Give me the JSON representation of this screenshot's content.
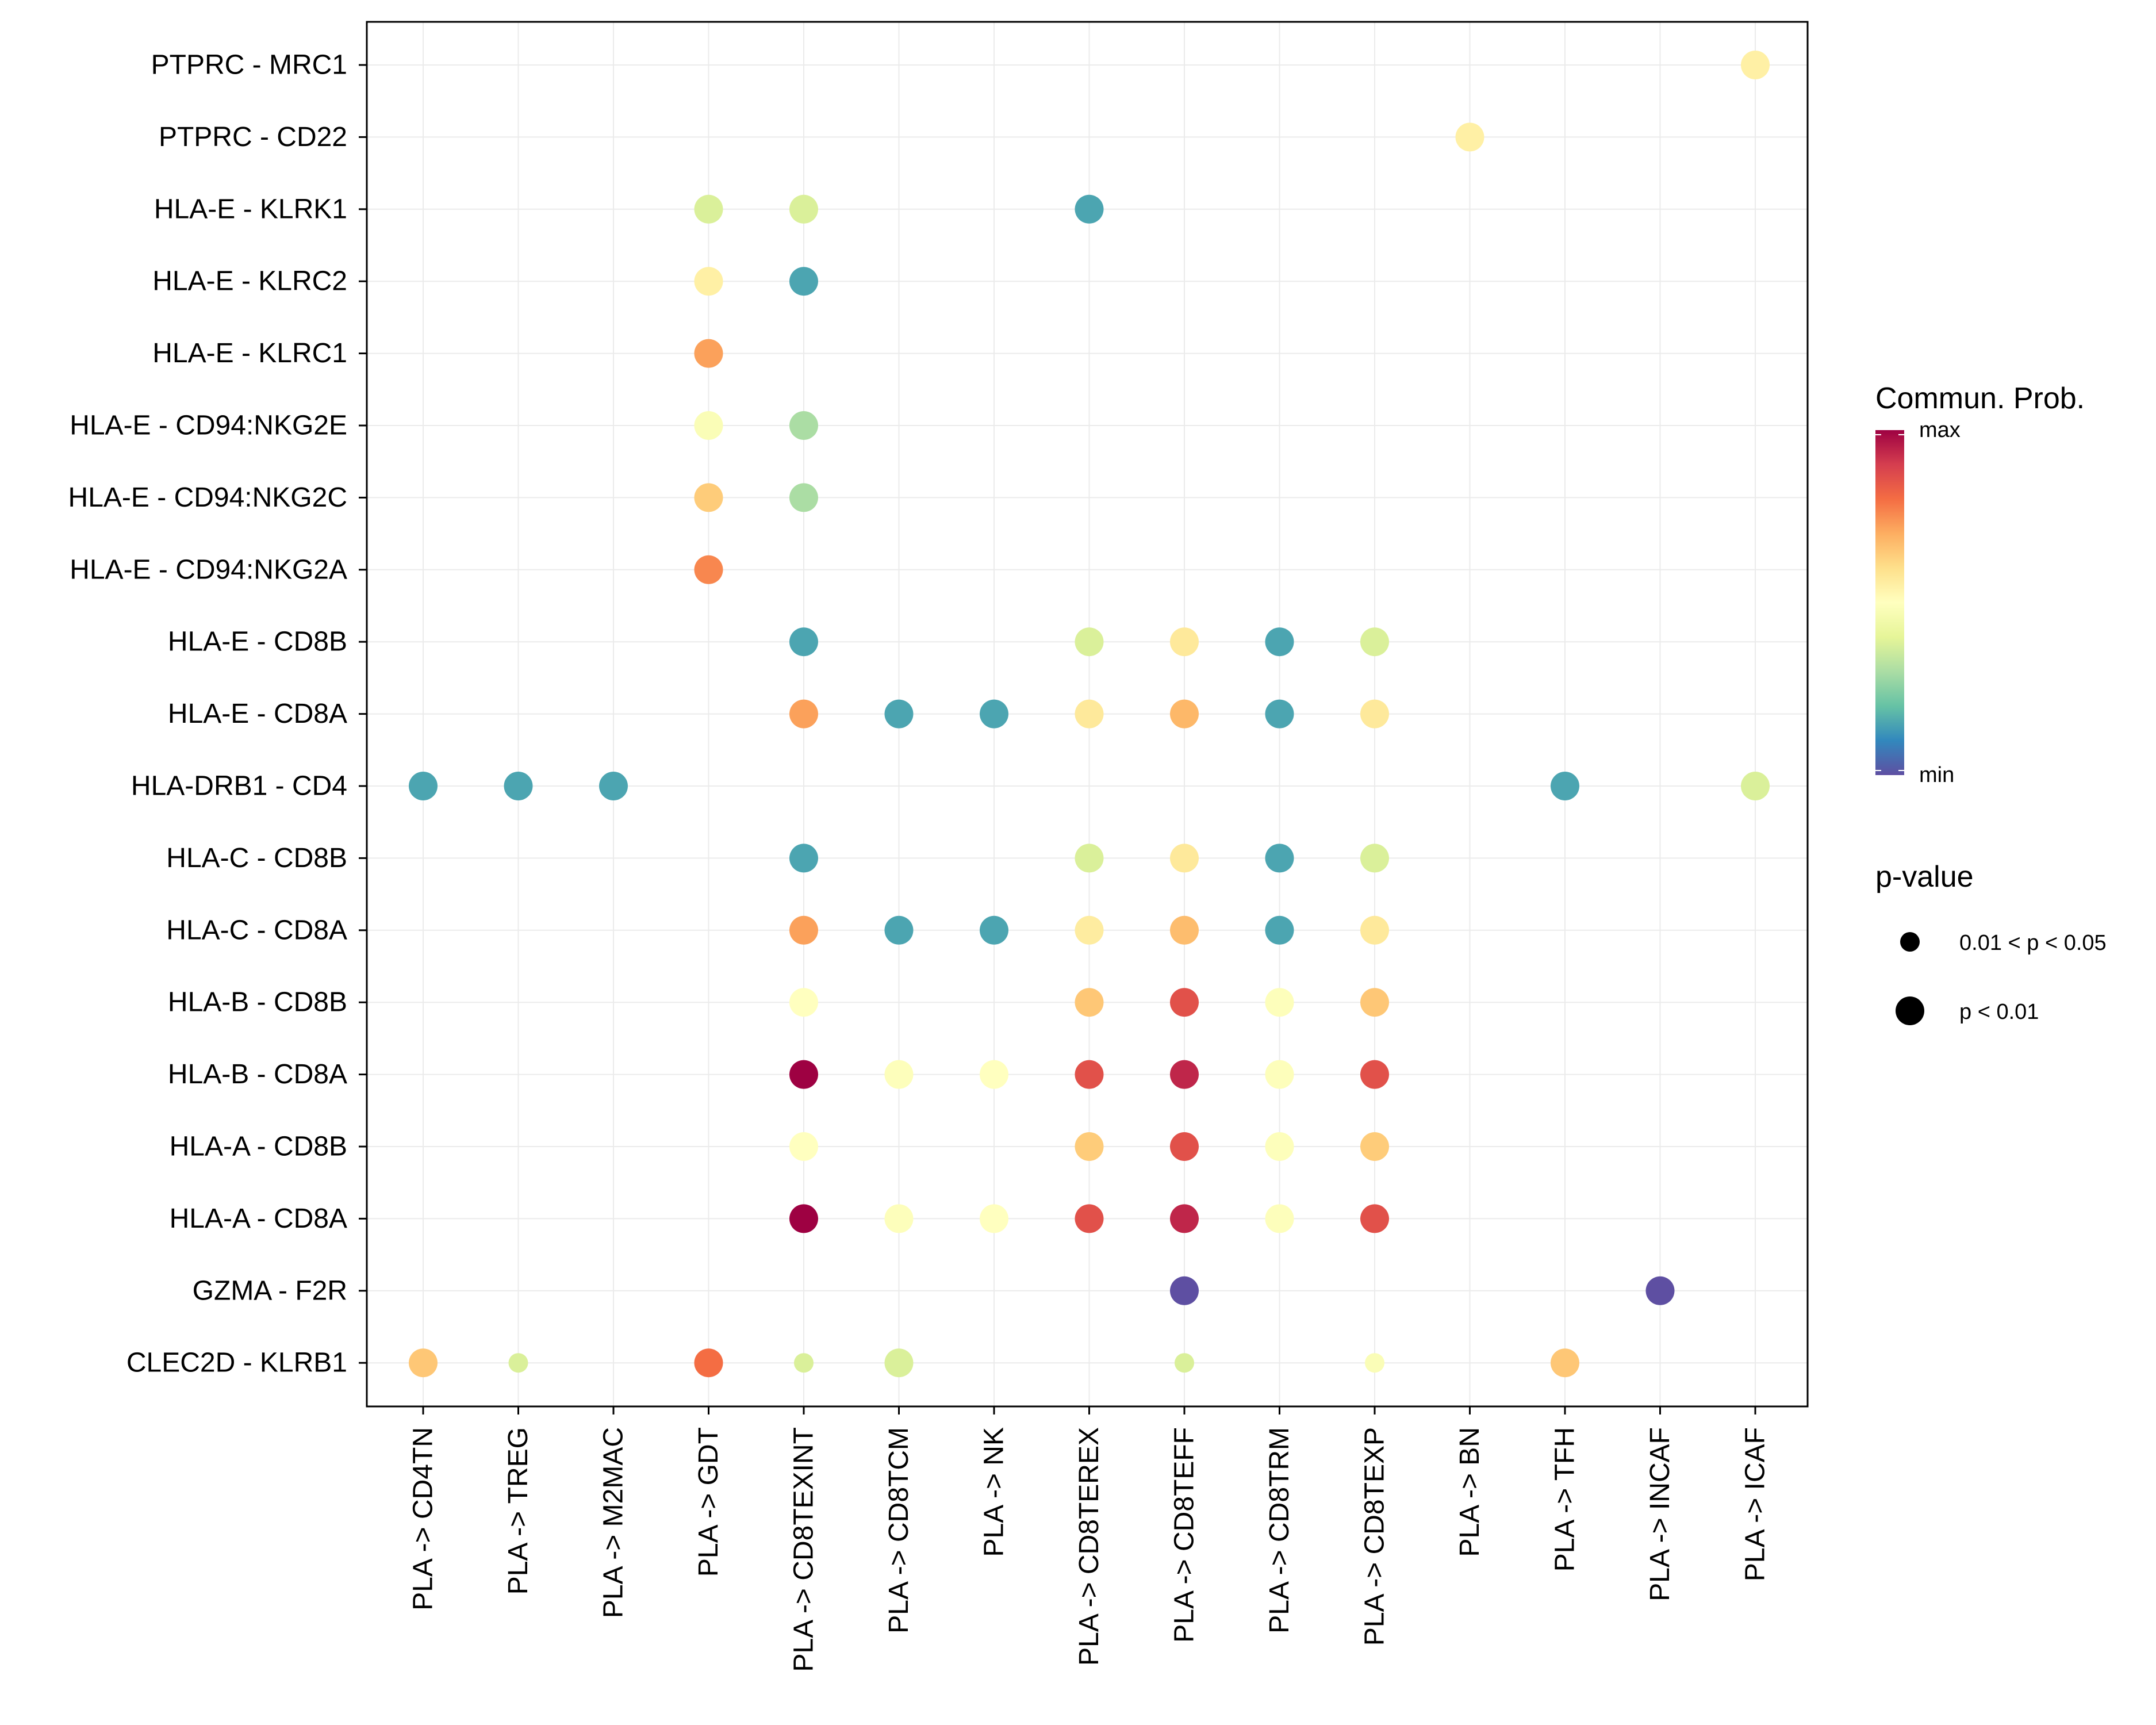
{
  "chart_data": {
    "type": "scatter",
    "subtype": "dot-plot",
    "x_categories": [
      "PLA -> CD4TN",
      "PLA -> TREG",
      "PLA -> M2MAC",
      "PLA -> GDT",
      "PLA -> CD8TEXINT",
      "PLA -> CD8TCM",
      "PLA -> NK",
      "PLA -> CD8TEREX",
      "PLA -> CD8TEFF",
      "PLA -> CD8TRM",
      "PLA -> CD8TEXP",
      "PLA -> BN",
      "PLA -> TFH",
      "PLA -> INCAF",
      "PLA -> ICAF"
    ],
    "y_categories": [
      "PTPRC - MRC1",
      "PTPRC - CD22",
      "HLA-E - KLRK1",
      "HLA-E - KLRC2",
      "HLA-E - KLRC1",
      "HLA-E - CD94:NKG2E",
      "HLA-E - CD94:NKG2C",
      "HLA-E - CD94:NKG2A",
      "HLA-E - CD8B",
      "HLA-E - CD8A",
      "HLA-DRB1 - CD4",
      "HLA-C - CD8B",
      "HLA-C - CD8A",
      "HLA-B - CD8B",
      "HLA-B - CD8A",
      "HLA-A - CD8B",
      "HLA-A - CD8A",
      "GZMA - F2R",
      "CLEC2D - KLRB1"
    ],
    "points": [
      {
        "x": "PLA -> ICAF",
        "y": "PTPRC - MRC1",
        "prob": 0.55,
        "pval": "p < 0.01"
      },
      {
        "x": "PLA -> BN",
        "y": "PTPRC - CD22",
        "prob": 0.55,
        "pval": "p < 0.01"
      },
      {
        "x": "PLA -> GDT",
        "y": "HLA-E - KLRK1",
        "prob": 0.38,
        "pval": "p < 0.01"
      },
      {
        "x": "PLA -> CD8TEXINT",
        "y": "HLA-E - KLRK1",
        "prob": 0.38,
        "pval": "p < 0.01"
      },
      {
        "x": "PLA -> CD8TEREX",
        "y": "HLA-E - KLRK1",
        "prob": 0.15,
        "pval": "p < 0.01"
      },
      {
        "x": "PLA -> GDT",
        "y": "HLA-E - KLRC2",
        "prob": 0.55,
        "pval": "p < 0.01"
      },
      {
        "x": "PLA -> CD8TEXINT",
        "y": "HLA-E - KLRC2",
        "prob": 0.15,
        "pval": "p < 0.01"
      },
      {
        "x": "PLA -> GDT",
        "y": "HLA-E - KLRC1",
        "prob": 0.72,
        "pval": "p < 0.01"
      },
      {
        "x": "PLA -> GDT",
        "y": "HLA-E - CD94:NKG2E",
        "prob": 0.48,
        "pval": "p < 0.01"
      },
      {
        "x": "PLA -> CD8TEXINT",
        "y": "HLA-E - CD94:NKG2E",
        "prob": 0.3,
        "pval": "p < 0.01"
      },
      {
        "x": "PLA -> GDT",
        "y": "HLA-E - CD94:NKG2C",
        "prob": 0.64,
        "pval": "p < 0.01"
      },
      {
        "x": "PLA -> CD8TEXINT",
        "y": "HLA-E - CD94:NKG2C",
        "prob": 0.3,
        "pval": "p < 0.01"
      },
      {
        "x": "PLA -> GDT",
        "y": "HLA-E - CD94:NKG2A",
        "prob": 0.76,
        "pval": "p < 0.01"
      },
      {
        "x": "PLA -> CD8TEXINT",
        "y": "HLA-E - CD8B",
        "prob": 0.15,
        "pval": "p < 0.01"
      },
      {
        "x": "PLA -> CD8TEREX",
        "y": "HLA-E - CD8B",
        "prob": 0.38,
        "pval": "p < 0.01"
      },
      {
        "x": "PLA -> CD8TEFF",
        "y": "HLA-E - CD8B",
        "prob": 0.57,
        "pval": "p < 0.01"
      },
      {
        "x": "PLA -> CD8TRM",
        "y": "HLA-E - CD8B",
        "prob": 0.15,
        "pval": "p < 0.01"
      },
      {
        "x": "PLA -> CD8TEXP",
        "y": "HLA-E - CD8B",
        "prob": 0.38,
        "pval": "p < 0.01"
      },
      {
        "x": "PLA -> CD8TEXINT",
        "y": "HLA-E - CD8A",
        "prob": 0.72,
        "pval": "p < 0.01"
      },
      {
        "x": "PLA -> CD8TCM",
        "y": "HLA-E - CD8A",
        "prob": 0.15,
        "pval": "p < 0.01"
      },
      {
        "x": "PLA -> NK",
        "y": "HLA-E - CD8A",
        "prob": 0.15,
        "pval": "p < 0.01"
      },
      {
        "x": "PLA -> CD8TEREX",
        "y": "HLA-E - CD8A",
        "prob": 0.57,
        "pval": "p < 0.01"
      },
      {
        "x": "PLA -> CD8TEFF",
        "y": "HLA-E - CD8A",
        "prob": 0.68,
        "pval": "p < 0.01"
      },
      {
        "x": "PLA -> CD8TRM",
        "y": "HLA-E - CD8A",
        "prob": 0.15,
        "pval": "p < 0.01"
      },
      {
        "x": "PLA -> CD8TEXP",
        "y": "HLA-E - CD8A",
        "prob": 0.57,
        "pval": "p < 0.01"
      },
      {
        "x": "PLA -> CD4TN",
        "y": "HLA-DRB1 - CD4",
        "prob": 0.15,
        "pval": "p < 0.01"
      },
      {
        "x": "PLA -> TREG",
        "y": "HLA-DRB1 - CD4",
        "prob": 0.15,
        "pval": "p < 0.01"
      },
      {
        "x": "PLA -> M2MAC",
        "y": "HLA-DRB1 - CD4",
        "prob": 0.15,
        "pval": "p < 0.01"
      },
      {
        "x": "PLA -> TFH",
        "y": "HLA-DRB1 - CD4",
        "prob": 0.15,
        "pval": "p < 0.01"
      },
      {
        "x": "PLA -> ICAF",
        "y": "HLA-DRB1 - CD4",
        "prob": 0.38,
        "pval": "p < 0.01"
      },
      {
        "x": "PLA -> CD8TEXINT",
        "y": "HLA-C - CD8B",
        "prob": 0.15,
        "pval": "p < 0.01"
      },
      {
        "x": "PLA -> CD8TEREX",
        "y": "HLA-C - CD8B",
        "prob": 0.38,
        "pval": "p < 0.01"
      },
      {
        "x": "PLA -> CD8TEFF",
        "y": "HLA-C - CD8B",
        "prob": 0.57,
        "pval": "p < 0.01"
      },
      {
        "x": "PLA -> CD8TRM",
        "y": "HLA-C - CD8B",
        "prob": 0.15,
        "pval": "p < 0.01"
      },
      {
        "x": "PLA -> CD8TEXP",
        "y": "HLA-C - CD8B",
        "prob": 0.38,
        "pval": "p < 0.01"
      },
      {
        "x": "PLA -> CD8TEXINT",
        "y": "HLA-C - CD8A",
        "prob": 0.72,
        "pval": "p < 0.01"
      },
      {
        "x": "PLA -> CD8TCM",
        "y": "HLA-C - CD8A",
        "prob": 0.15,
        "pval": "p < 0.01"
      },
      {
        "x": "PLA -> NK",
        "y": "HLA-C - CD8A",
        "prob": 0.15,
        "pval": "p < 0.01"
      },
      {
        "x": "PLA -> CD8TEREX",
        "y": "HLA-C - CD8A",
        "prob": 0.56,
        "pval": "p < 0.01"
      },
      {
        "x": "PLA -> CD8TEFF",
        "y": "HLA-C - CD8A",
        "prob": 0.67,
        "pval": "p < 0.01"
      },
      {
        "x": "PLA -> CD8TRM",
        "y": "HLA-C - CD8A",
        "prob": 0.15,
        "pval": "p < 0.01"
      },
      {
        "x": "PLA -> CD8TEXP",
        "y": "HLA-C - CD8A",
        "prob": 0.57,
        "pval": "p < 0.01"
      },
      {
        "x": "PLA -> CD8TEXINT",
        "y": "HLA-B - CD8B",
        "prob": 0.5,
        "pval": "p < 0.01"
      },
      {
        "x": "PLA -> CD8TEREX",
        "y": "HLA-B - CD8B",
        "prob": 0.65,
        "pval": "p < 0.01"
      },
      {
        "x": "PLA -> CD8TEFF",
        "y": "HLA-B - CD8B",
        "prob": 0.86,
        "pval": "p < 0.01"
      },
      {
        "x": "PLA -> CD8TRM",
        "y": "HLA-B - CD8B",
        "prob": 0.49,
        "pval": "p < 0.01"
      },
      {
        "x": "PLA -> CD8TEXP",
        "y": "HLA-B - CD8B",
        "prob": 0.65,
        "pval": "p < 0.01"
      },
      {
        "x": "PLA -> CD8TEXINT",
        "y": "HLA-B - CD8A",
        "prob": 1.0,
        "pval": "p < 0.01"
      },
      {
        "x": "PLA -> CD8TCM",
        "y": "HLA-B - CD8A",
        "prob": 0.49,
        "pval": "p < 0.01"
      },
      {
        "x": "PLA -> NK",
        "y": "HLA-B - CD8A",
        "prob": 0.5,
        "pval": "p < 0.01"
      },
      {
        "x": "PLA -> CD8TEREX",
        "y": "HLA-B - CD8A",
        "prob": 0.86,
        "pval": "p < 0.01"
      },
      {
        "x": "PLA -> CD8TEFF",
        "y": "HLA-B - CD8A",
        "prob": 0.94,
        "pval": "p < 0.01"
      },
      {
        "x": "PLA -> CD8TRM",
        "y": "HLA-B - CD8A",
        "prob": 0.49,
        "pval": "p < 0.01"
      },
      {
        "x": "PLA -> CD8TEXP",
        "y": "HLA-B - CD8A",
        "prob": 0.86,
        "pval": "p < 0.01"
      },
      {
        "x": "PLA -> CD8TEXINT",
        "y": "HLA-A - CD8B",
        "prob": 0.5,
        "pval": "p < 0.01"
      },
      {
        "x": "PLA -> CD8TEREX",
        "y": "HLA-A - CD8B",
        "prob": 0.64,
        "pval": "p < 0.01"
      },
      {
        "x": "PLA -> CD8TEFF",
        "y": "HLA-A - CD8B",
        "prob": 0.86,
        "pval": "p < 0.01"
      },
      {
        "x": "PLA -> CD8TRM",
        "y": "HLA-A - CD8B",
        "prob": 0.49,
        "pval": "p < 0.01"
      },
      {
        "x": "PLA -> CD8TEXP",
        "y": "HLA-A - CD8B",
        "prob": 0.64,
        "pval": "p < 0.01"
      },
      {
        "x": "PLA -> CD8TEXINT",
        "y": "HLA-A - CD8A",
        "prob": 1.0,
        "pval": "p < 0.01"
      },
      {
        "x": "PLA -> CD8TCM",
        "y": "HLA-A - CD8A",
        "prob": 0.49,
        "pval": "p < 0.01"
      },
      {
        "x": "PLA -> NK",
        "y": "HLA-A - CD8A",
        "prob": 0.5,
        "pval": "p < 0.01"
      },
      {
        "x": "PLA -> CD8TEREX",
        "y": "HLA-A - CD8A",
        "prob": 0.86,
        "pval": "p < 0.01"
      },
      {
        "x": "PLA -> CD8TEFF",
        "y": "HLA-A - CD8A",
        "prob": 0.94,
        "pval": "p < 0.01"
      },
      {
        "x": "PLA -> CD8TRM",
        "y": "HLA-A - CD8A",
        "prob": 0.49,
        "pval": "p < 0.01"
      },
      {
        "x": "PLA -> CD8TEXP",
        "y": "HLA-A - CD8A",
        "prob": 0.86,
        "pval": "p < 0.01"
      },
      {
        "x": "PLA -> CD8TEFF",
        "y": "GZMA - F2R",
        "prob": 0.0,
        "pval": "p < 0.01"
      },
      {
        "x": "PLA -> INCAF",
        "y": "GZMA - F2R",
        "prob": 0.0,
        "pval": "p < 0.01"
      },
      {
        "x": "PLA -> CD4TN",
        "y": "CLEC2D - KLRB1",
        "prob": 0.65,
        "pval": "p < 0.01"
      },
      {
        "x": "PLA -> TREG",
        "y": "CLEC2D - KLRB1",
        "prob": 0.38,
        "pval": "0.01 < p < 0.05"
      },
      {
        "x": "PLA -> GDT",
        "y": "CLEC2D - KLRB1",
        "prob": 0.8,
        "pval": "p < 0.01"
      },
      {
        "x": "PLA -> CD8TEXINT",
        "y": "CLEC2D - KLRB1",
        "prob": 0.38,
        "pval": "0.01 < p < 0.05"
      },
      {
        "x": "PLA -> CD8TCM",
        "y": "CLEC2D - KLRB1",
        "prob": 0.38,
        "pval": "p < 0.01"
      },
      {
        "x": "PLA -> CD8TEFF",
        "y": "CLEC2D - KLRB1",
        "prob": 0.38,
        "pval": "0.01 < p < 0.05"
      },
      {
        "x": "PLA -> CD8TEXP",
        "y": "CLEC2D - KLRB1",
        "prob": 0.48,
        "pval": "0.01 < p < 0.05"
      },
      {
        "x": "PLA -> TFH",
        "y": "CLEC2D - KLRB1",
        "prob": 0.65,
        "pval": "p < 0.01"
      }
    ],
    "color_legend": {
      "title": "Commun. Prob.",
      "max_label": "max",
      "min_label": "min"
    },
    "size_legend": {
      "title": "p-value",
      "levels": [
        "0.01 < p < 0.05",
        "p < 0.01"
      ]
    },
    "palette": [
      "#5e4fa2",
      "#3288bd",
      "#66c2a5",
      "#abdda4",
      "#e6f598",
      "#ffffbf",
      "#fee08b",
      "#fdae61",
      "#f46d43",
      "#d53e4f",
      "#9e0142"
    ],
    "grid": true,
    "xlabel": "",
    "ylabel": ""
  }
}
